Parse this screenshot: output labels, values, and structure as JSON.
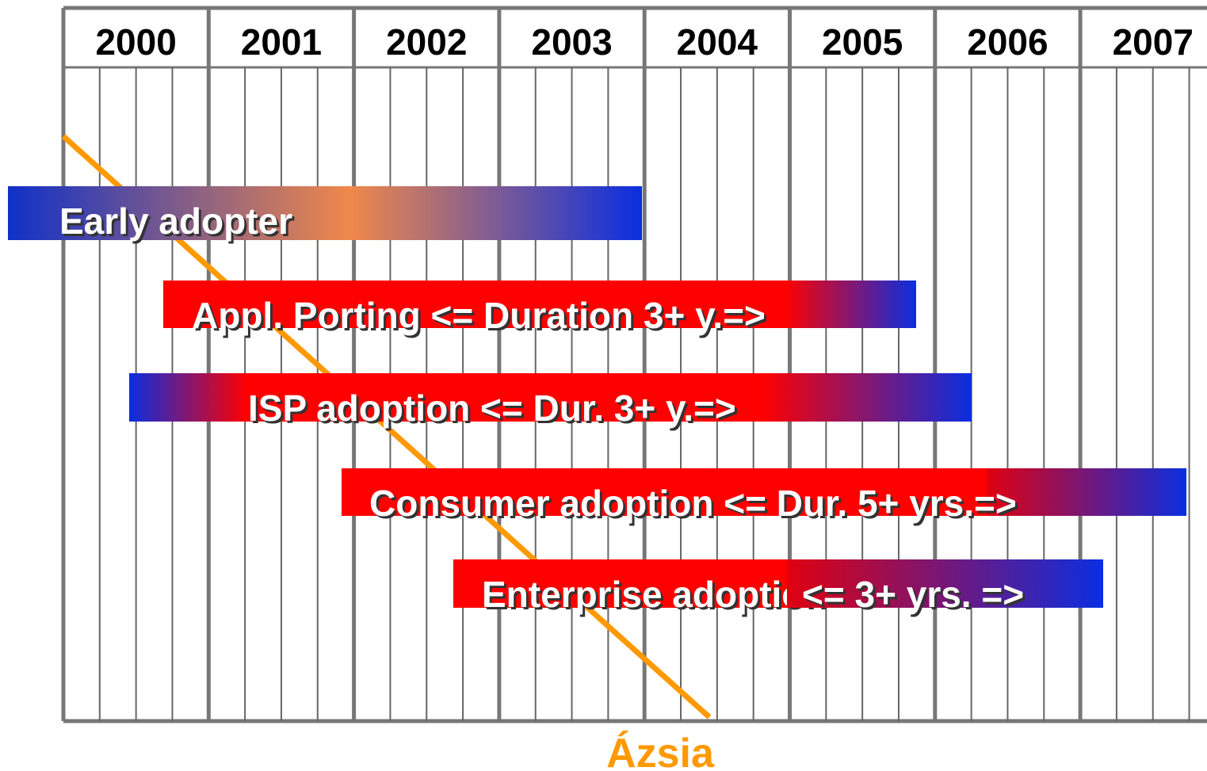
{
  "years": [
    "2000",
    "2001",
    "2002",
    "2003",
    "2004",
    "2005",
    "2006",
    "2007"
  ],
  "bars": [
    {
      "label": "Early adopter"
    },
    {
      "label": "Appl. Porting <= Duration 3+ y.=>"
    },
    {
      "label": "ISP adoption <=  Dur. 3+ y.=>"
    },
    {
      "label": "Consumer adoption <= Dur. 5+ yrs.=>"
    },
    {
      "label": "Enterprise adoption",
      "label2": "<= 3+ yrs. =>"
    }
  ],
  "annotation": "Ázsia"
}
